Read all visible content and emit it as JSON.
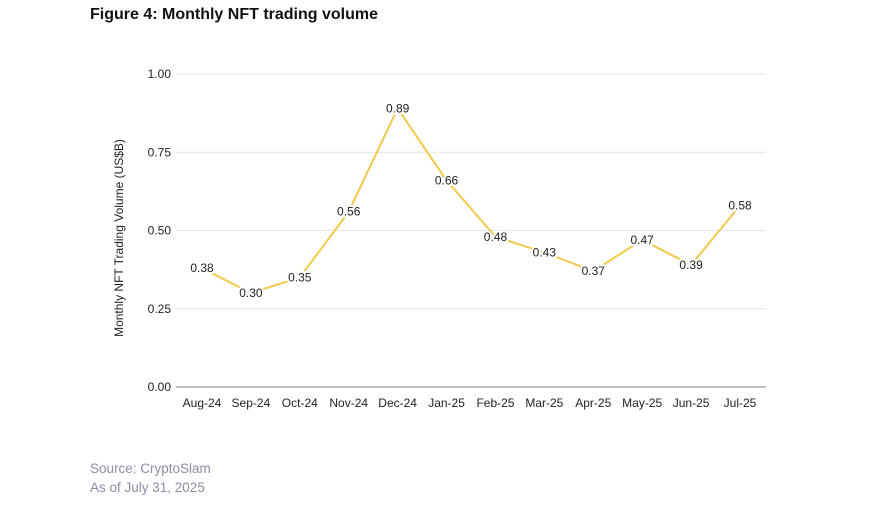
{
  "figure": {
    "title": "Figure 4: Monthly NFT trading volume",
    "source": "Source: CryptoSlam",
    "as_of": "As of July 31, 2025"
  },
  "colors": {
    "line": "#F2C94C",
    "grid": "#e3e3e3",
    "axis": "#9a9a9a",
    "text": "#222222",
    "source_text": "#8a8fa3"
  },
  "chart_data": {
    "type": "line",
    "title": "Figure 4: Monthly NFT trading volume",
    "xlabel": "",
    "ylabel": "Monthly NFT Trading Volume (US$B)",
    "categories": [
      "Aug-24",
      "Sep-24",
      "Oct-24",
      "Nov-24",
      "Dec-24",
      "Jan-25",
      "Feb-25",
      "Mar-25",
      "Apr-25",
      "May-25",
      "Jun-25",
      "Jul-25"
    ],
    "series": [
      {
        "values": [
          0.38,
          0.3,
          0.35,
          0.56,
          0.89,
          0.66,
          0.48,
          0.43,
          0.37,
          0.47,
          0.39,
          0.58
        ]
      }
    ],
    "data_labels": [
      "0.38",
      "0.30",
      "0.35",
      "0.56",
      "0.89",
      "0.66",
      "0.48",
      "0.43",
      "0.37",
      "0.47",
      "0.39",
      "0.58"
    ],
    "yticks": [
      "0.00",
      "0.25",
      "0.50",
      "0.75",
      "1.00"
    ],
    "ylim": [
      0,
      1
    ],
    "grid": true
  }
}
